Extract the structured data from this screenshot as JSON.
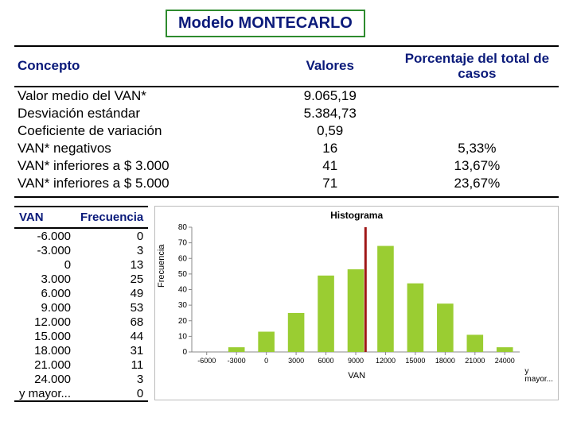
{
  "title": "Modelo MONTECARLO",
  "stats_table": {
    "headers": {
      "concept": "Concepto",
      "values": "Valores",
      "pct": "Porcentaje del total de casos"
    },
    "rows": [
      {
        "concept": "Valor medio del VAN*",
        "value": "9.065,19",
        "pct": ""
      },
      {
        "concept": "Desviación estándar",
        "value": "5.384,73",
        "pct": ""
      },
      {
        "concept": "Coeficiente de variación",
        "value": "0,59",
        "pct": ""
      },
      {
        "concept": "VAN* negativos",
        "value": "16",
        "pct": "5,33%"
      },
      {
        "concept": "VAN* inferiores a $ 3.000",
        "value": "41",
        "pct": "13,67%"
      },
      {
        "concept": "VAN* inferiores a $ 5.000",
        "value": "71",
        "pct": "23,67%"
      }
    ]
  },
  "freq_table": {
    "headers": {
      "van": "VAN",
      "freq": "Frecuencia"
    },
    "rows": [
      {
        "van": "-6.000",
        "freq": "0"
      },
      {
        "van": "-3.000",
        "freq": "3"
      },
      {
        "van": "0",
        "freq": "13"
      },
      {
        "van": "3.000",
        "freq": "25"
      },
      {
        "van": "6.000",
        "freq": "49"
      },
      {
        "van": "9.000",
        "freq": "53"
      },
      {
        "van": "12.000",
        "freq": "68"
      },
      {
        "van": "15.000",
        "freq": "44"
      },
      {
        "van": "18.000",
        "freq": "31"
      },
      {
        "van": "21.000",
        "freq": "11"
      },
      {
        "van": "24.000",
        "freq": "3"
      },
      {
        "van": "y mayor...",
        "freq": "0"
      }
    ]
  },
  "histogram": {
    "type": "bar",
    "title": "Histograma",
    "xlabel": "VAN",
    "ylabel": "Frecuencia",
    "bar_color": "#9acd32",
    "median_line_color": "#a01818",
    "axis_color": "#888888",
    "tick_color": "#888888",
    "text_color": "#000000",
    "background_color": "#ffffff",
    "title_fontsize": 12,
    "label_fontsize": 11,
    "tick_fontsize": 10,
    "ylim": [
      0,
      80
    ],
    "ytick_step": 10,
    "categories": [
      "-6000",
      "-3000",
      "0",
      "3000",
      "6000",
      "9000",
      "12000",
      "15000",
      "18000",
      "21000",
      "24000"
    ],
    "values": [
      0,
      3,
      13,
      25,
      49,
      53,
      68,
      44,
      31,
      11,
      3
    ],
    "bar_width_ratio": 0.55,
    "median_line_x_index": 5,
    "extra_x_label": "y\nmayor..."
  }
}
